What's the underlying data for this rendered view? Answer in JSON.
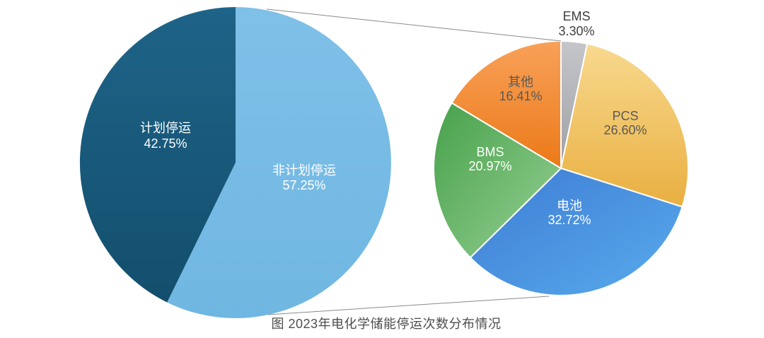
{
  "caption": "图 2023年电化学储能停运次数分布情况",
  "chart_data": [
    {
      "type": "pie",
      "name": "outage-type-pie",
      "description_labels": [
        "非计划停运",
        "计划停运"
      ],
      "slices": [
        {
          "label": "非计划停运",
          "value": 57.25,
          "display": "57.25%",
          "color_start": "#7FC0E8",
          "color_end": "#6FB7E2",
          "label_color": "#FFFFFF"
        },
        {
          "label": "计划停运",
          "value": 42.75,
          "display": "42.75%",
          "color_start": "#1E6488",
          "color_end": "#134E6D",
          "label_color": "#FFFFFF"
        }
      ],
      "start_angle_deg": 0,
      "direction": "clockwise",
      "legend": "none"
    },
    {
      "type": "pie",
      "name": "unplanned-outage-breakdown-pie",
      "description_labels": [
        "EMS",
        "PCS",
        "电池",
        "BMS",
        "其他"
      ],
      "slices": [
        {
          "label": "EMS",
          "value": 3.3,
          "display": "3.30%",
          "color_start": "#C5C6CA",
          "color_end": "#9EA0A5",
          "label_color": "#404040"
        },
        {
          "label": "PCS",
          "value": 26.6,
          "display": "26.60%",
          "color_start": "#F8D98F",
          "color_end": "#E9AF40",
          "label_color": "#595959"
        },
        {
          "label": "电池",
          "value": 32.72,
          "display": "32.72%",
          "color_start": "#3E7CD4",
          "color_end": "#58ABEC",
          "label_color": "#FFFFFF"
        },
        {
          "label": "BMS",
          "value": 20.97,
          "display": "20.97%",
          "color_start": "#47A14B",
          "color_end": "#97D094",
          "label_color": "#FFFFFF"
        },
        {
          "label": "其他",
          "value": 16.41,
          "display": "16.41%",
          "color_start": "#F8A159",
          "color_end": "#EC7918",
          "label_color": "#595959"
        }
      ],
      "start_angle_deg": 0,
      "direction": "clockwise",
      "legend": "none"
    }
  ],
  "colors": {
    "background": "#FFFFFF",
    "caption_text": "#4D4D4D",
    "connector_line": "#8A8A8A",
    "slice_divider": "#FFFFFF"
  }
}
